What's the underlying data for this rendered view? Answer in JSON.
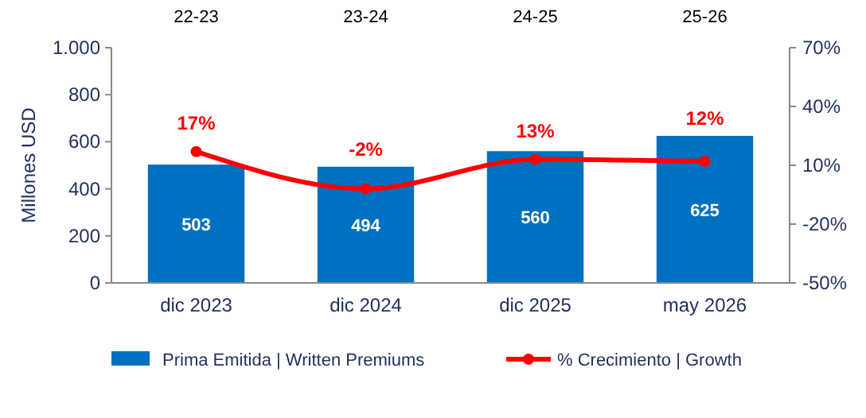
{
  "chart_data": {
    "type": "bar",
    "ylabel": "Millones  USD",
    "categories": [
      "dic 2023",
      "dic 2024",
      "dic 2025",
      "may 2026"
    ],
    "series": [
      {
        "name": "Prima Emitida | Written Premiums",
        "color": "#0070c0",
        "values": [
          503,
          494,
          560,
          625
        ],
        "data_labels": true
      },
      {
        "name": "% Crecimiento | Growth",
        "type": "line",
        "axis": "y2",
        "color": "#ff0000",
        "values": [
          17,
          -2,
          13,
          12
        ],
        "value_labels": [
          "17%",
          "-2%",
          "13%",
          "12%"
        ]
      }
    ],
    "ylim": [
      0,
      1000
    ],
    "yticks": [
      0,
      200,
      400,
      600,
      800,
      {
        "value": 1000,
        "label": "1.000"
      }
    ],
    "y2lim": [
      -50,
      70
    ],
    "y2ticks": [
      {
        "value": -50,
        "label": "-50%"
      },
      {
        "value": -20,
        "label": "-20%"
      },
      {
        "value": 10,
        "label": "10%"
      },
      {
        "value": 40,
        "label": "40%"
      },
      {
        "value": 70,
        "label": "70%"
      }
    ],
    "annotations": [
      "22-23",
      "23-24",
      "24-25",
      "25-26"
    ],
    "marker": "circle",
    "line_style": "solid",
    "grid": false,
    "legend": "bottom"
  }
}
